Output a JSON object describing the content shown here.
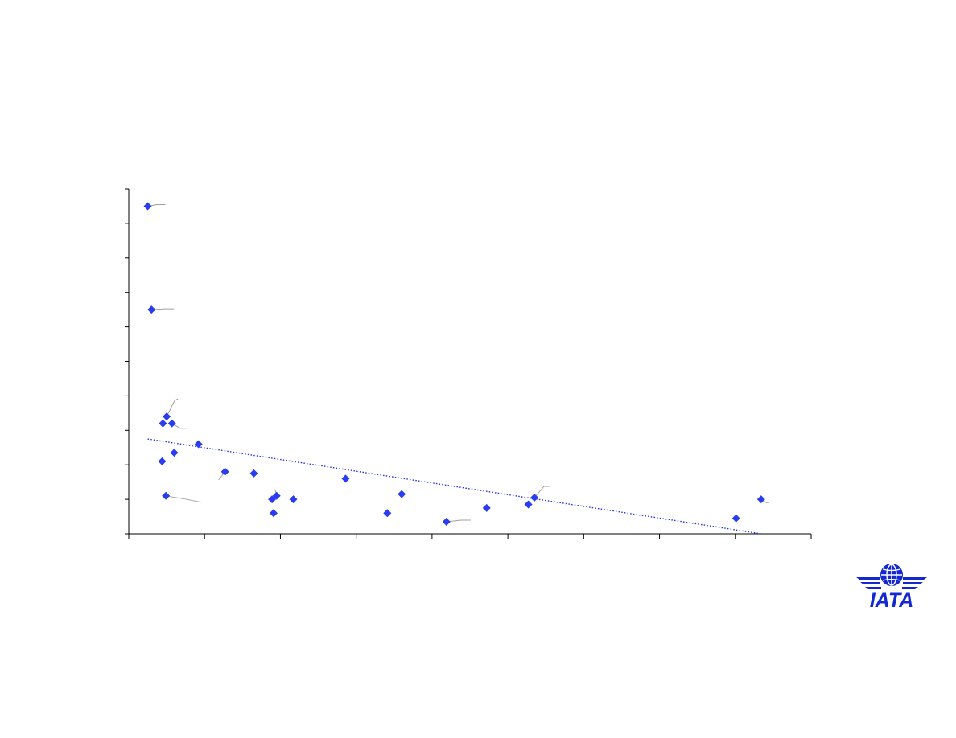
{
  "brand": {
    "logo_text": "IATA",
    "logo_color": "#1428d2"
  },
  "colors": {
    "marker": "#2a3cf0",
    "trendline": "#2233dd",
    "axis": "#000000",
    "leader": "#a0a0a0"
  },
  "chart_data": {
    "type": "scatter",
    "title": "",
    "xlabel": "",
    "ylabel": "",
    "xlim": [
      0,
      90
    ],
    "ylim": [
      0,
      10
    ],
    "x_ticks": [
      0,
      10,
      20,
      30,
      40,
      50,
      60,
      70,
      80,
      90
    ],
    "y_ticks": [
      0,
      1,
      2,
      3,
      4,
      5,
      6,
      7,
      8,
      9,
      10
    ],
    "tick_labels_visible": false,
    "grid": false,
    "legend": "none",
    "points": [
      {
        "x": 2.5,
        "y": 9.5
      },
      {
        "x": 3.0,
        "y": 6.5
      },
      {
        "x": 4.5,
        "y": 3.2
      },
      {
        "x": 5.0,
        "y": 3.4
      },
      {
        "x": 5.7,
        "y": 3.2
      },
      {
        "x": 4.4,
        "y": 2.1
      },
      {
        "x": 6.0,
        "y": 2.35
      },
      {
        "x": 9.2,
        "y": 2.6
      },
      {
        "x": 4.9,
        "y": 1.1
      },
      {
        "x": 12.7,
        "y": 1.8
      },
      {
        "x": 16.5,
        "y": 1.75
      },
      {
        "x": 18.9,
        "y": 1.0
      },
      {
        "x": 19.5,
        "y": 1.1
      },
      {
        "x": 19.1,
        "y": 0.6
      },
      {
        "x": 21.7,
        "y": 1.0
      },
      {
        "x": 28.6,
        "y": 1.6
      },
      {
        "x": 34.1,
        "y": 0.6
      },
      {
        "x": 36.0,
        "y": 1.15
      },
      {
        "x": 41.9,
        "y": 0.35
      },
      {
        "x": 47.2,
        "y": 0.75
      },
      {
        "x": 52.7,
        "y": 0.85
      },
      {
        "x": 53.5,
        "y": 1.05
      },
      {
        "x": 80.1,
        "y": 0.45
      },
      {
        "x": 83.4,
        "y": 1.0
      }
    ],
    "trendline": {
      "style": "dotted",
      "x": [
        2.5,
        83.4
      ],
      "y": [
        2.75,
        0.0
      ]
    }
  }
}
